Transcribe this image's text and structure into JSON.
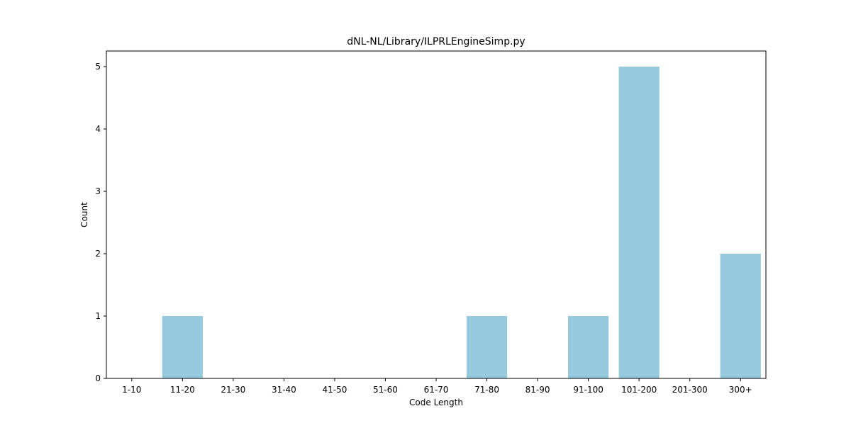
{
  "chart_data": {
    "type": "bar",
    "title": "dNL-NL/Library/ILPRLEngineSimp.py",
    "xlabel": "Code Length",
    "ylabel": "Count",
    "categories": [
      "1-10",
      "11-20",
      "21-30",
      "31-40",
      "41-50",
      "51-60",
      "61-70",
      "71-80",
      "81-90",
      "91-100",
      "101-200",
      "201-300",
      "300+"
    ],
    "values": [
      0,
      1,
      0,
      0,
      0,
      0,
      0,
      1,
      0,
      1,
      5,
      0,
      2
    ],
    "yticks": [
      0,
      1,
      2,
      3,
      4,
      5
    ],
    "ylim": [
      0,
      5.25
    ],
    "grid": false,
    "legend": "none",
    "colors": {
      "bar": "#95c9dd",
      "axes": "#000000",
      "background": "#ffffff"
    }
  }
}
